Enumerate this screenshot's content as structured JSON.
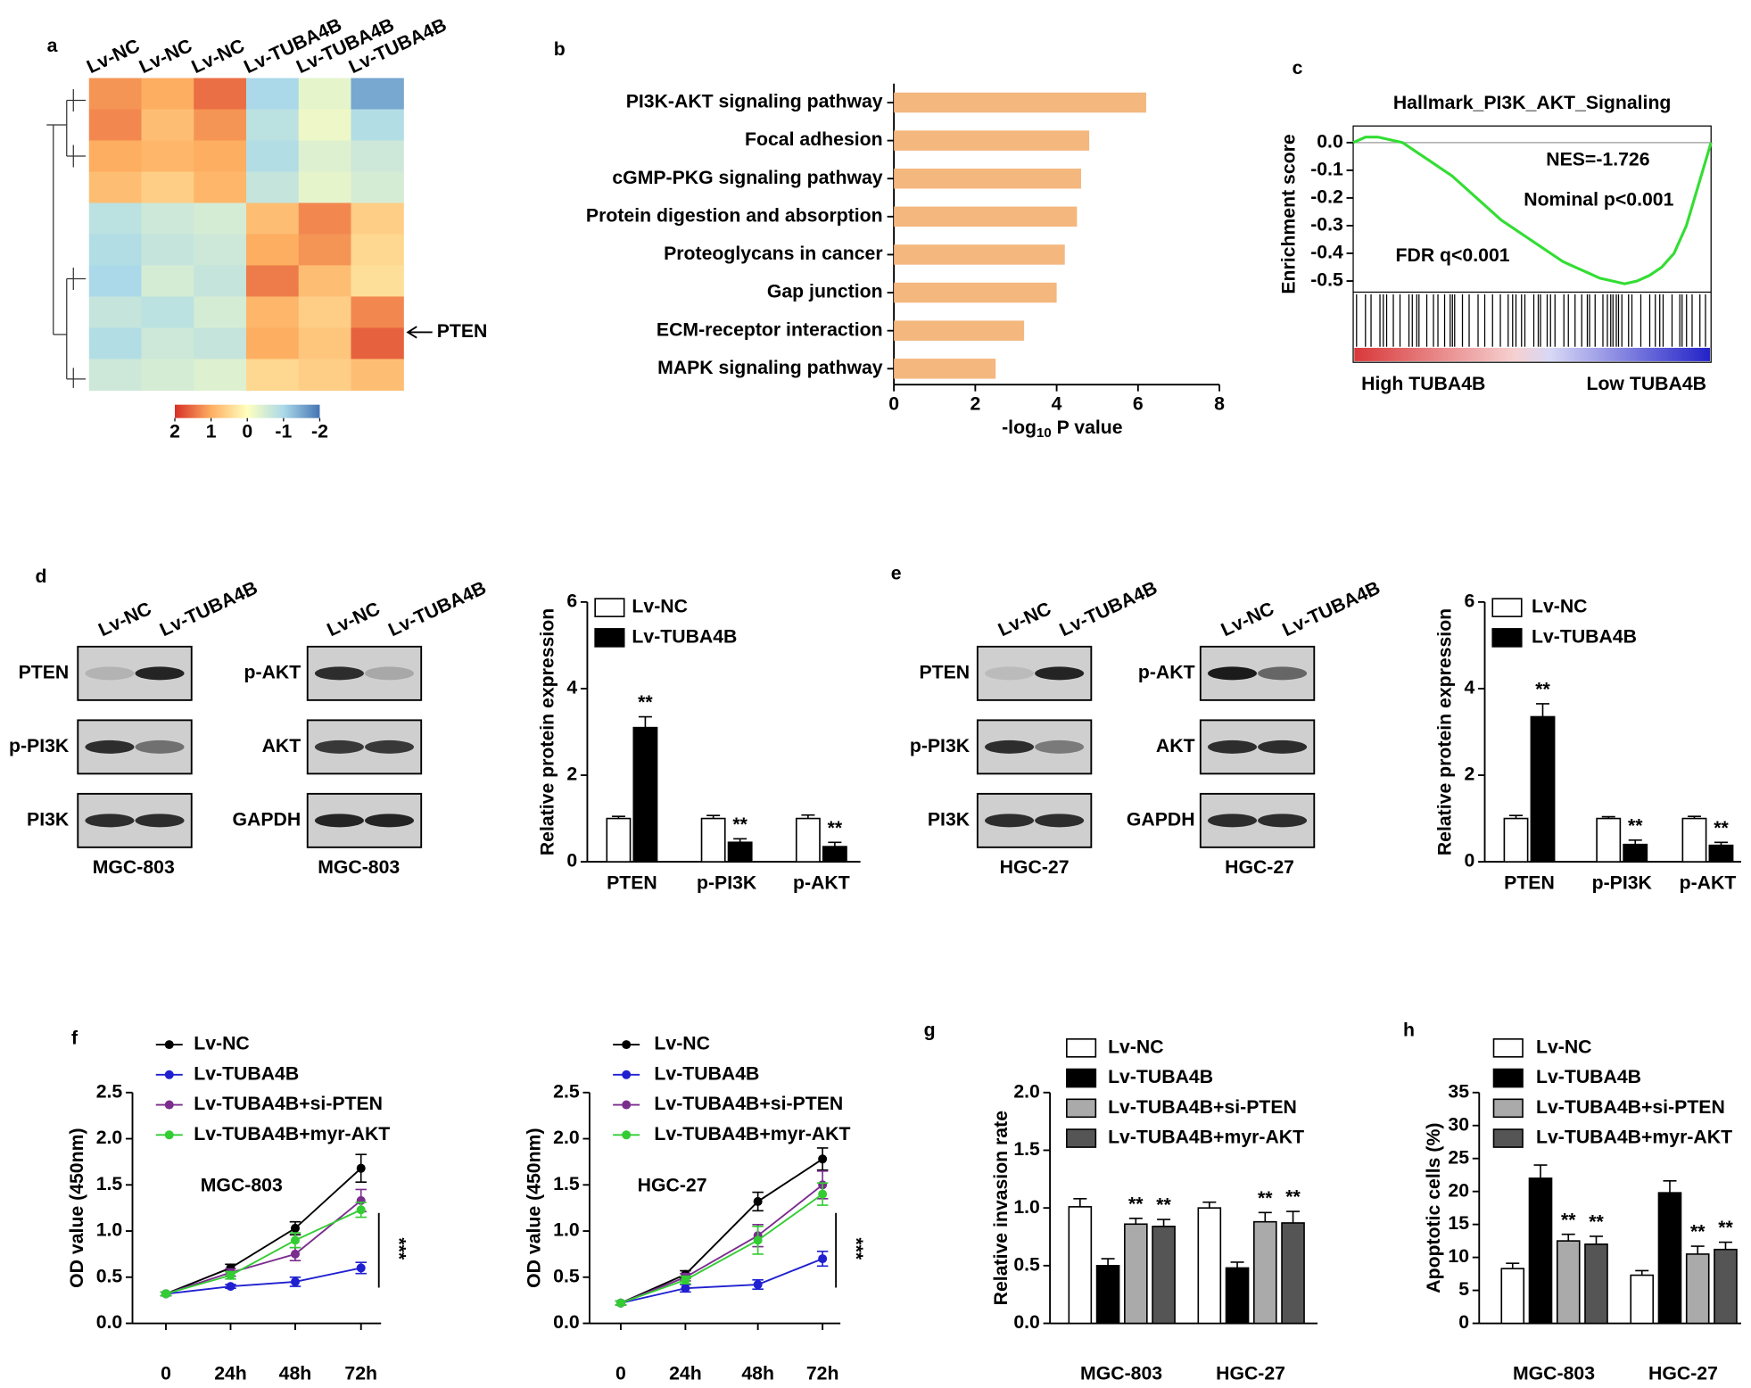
{
  "chart_data": [
    {
      "type": "heatmap",
      "panel": "a",
      "columns": [
        "Lv-NC",
        "Lv-NC",
        "Lv-NC",
        "Lv-TUBA4B",
        "Lv-TUBA4B",
        "Lv-TUBA4B"
      ],
      "values": [
        [
          1.2,
          1.0,
          1.5,
          -1.0,
          -0.3,
          -1.5
        ],
        [
          1.3,
          0.8,
          1.2,
          -0.8,
          -0.2,
          -0.9
        ],
        [
          1.0,
          0.9,
          1.0,
          -0.9,
          -0.4,
          -0.6
        ],
        [
          0.8,
          0.6,
          0.9,
          -0.7,
          -0.3,
          -0.5
        ],
        [
          -0.8,
          -0.6,
          -0.5,
          0.8,
          1.3,
          0.6
        ],
        [
          -0.9,
          -0.7,
          -0.6,
          1.0,
          1.2,
          0.5
        ],
        [
          -1.0,
          -0.5,
          -0.7,
          1.4,
          0.8,
          0.4
        ],
        [
          -0.7,
          -0.8,
          -0.5,
          0.9,
          0.6,
          1.3
        ],
        [
          -0.9,
          -0.6,
          -0.7,
          1.0,
          0.7,
          1.6
        ],
        [
          -0.6,
          -0.5,
          -0.4,
          0.5,
          0.6,
          0.8
        ]
      ],
      "colorbar_ticks": [
        2,
        1,
        0,
        -1,
        -2
      ],
      "colorscale": [
        "#d73027",
        "#fdae61",
        "#ffffbf",
        "#abd9e9",
        "#4575b4"
      ],
      "annotation": "PTEN"
    },
    {
      "type": "bar",
      "panel": "b",
      "orientation": "horizontal",
      "categories": [
        "PI3K-AKT signaling pathway",
        "Focal  adhesion",
        "cGMP-PKG signaling pathway",
        "Protein digestion and absorption",
        "Proteoglycans in cancer",
        "Gap junction",
        "ECM-receptor interaction",
        "MAPK signaling pathway"
      ],
      "values": [
        6.2,
        4.8,
        4.6,
        4.5,
        4.2,
        4.0,
        3.2,
        2.5
      ],
      "color": "#f4b77e",
      "xlim": [
        0,
        8
      ],
      "xticks": [
        0,
        2,
        4,
        6,
        8
      ],
      "xlabel": {
        "main": "-log",
        "sub": "10",
        "rest": " P value"
      }
    },
    {
      "type": "line",
      "panel": "c",
      "title": "Hallmark_PI3K_AKT_Signaling",
      "ylabel": "Enrichment score",
      "values": [
        0.0,
        0.02,
        0.02,
        0.01,
        0.0,
        -0.03,
        -0.06,
        -0.09,
        -0.12,
        -0.16,
        -0.2,
        -0.24,
        -0.28,
        -0.31,
        -0.34,
        -0.37,
        -0.4,
        -0.43,
        -0.45,
        -0.47,
        -0.49,
        -0.5,
        -0.51,
        -0.5,
        -0.48,
        -0.45,
        -0.4,
        -0.3,
        -0.15,
        0.0
      ],
      "color": "#33dd33",
      "ylim": [
        -0.54,
        0.06
      ],
      "yticks": [
        {
          "value": 0,
          "label": "0.0"
        },
        -0.1,
        -0.2,
        -0.3,
        -0.4,
        -0.5
      ],
      "annotations": [
        "NES=-1.726",
        "Nominal p<0.001",
        "FDR q<0.001"
      ],
      "x_labels": [
        "High TUBA4B",
        "Low TUBA4B"
      ]
    },
    {
      "type": "blot",
      "panel": "d",
      "groups": [
        {
          "lanes": [
            "Lv-NC",
            "Lv-TUBA4B"
          ],
          "rows": [
            "PTEN",
            "p-PI3K",
            "PI3K"
          ],
          "cell_line": "MGC-803"
        },
        {
          "lanes": [
            "Lv-NC",
            "Lv-TUBA4B"
          ],
          "rows": [
            "p-AKT",
            "AKT",
            "GAPDH"
          ],
          "cell_line": "MGC-803"
        }
      ]
    },
    {
      "type": "bar",
      "ylabel": "Relative protein expression",
      "categories": [
        "PTEN",
        "p-PI3K",
        "p-AKT"
      ],
      "series": [
        {
          "name": "Lv-NC",
          "color": "#ffffff",
          "values": [
            1,
            1,
            1
          ],
          "errors": [
            0.05,
            0.07,
            0.08
          ]
        },
        {
          "name": "Lv-TUBA4B",
          "color": "#000000",
          "values": [
            3.1,
            0.45,
            0.35
          ],
          "errors": [
            0.25,
            0.08,
            0.1
          ],
          "significance": [
            "**",
            "**",
            "**"
          ]
        }
      ],
      "ylim": [
        0,
        6
      ],
      "yticks": [
        0,
        2,
        4,
        6
      ]
    },
    {
      "type": "blot",
      "panel": "e",
      "groups": [
        {
          "lanes": [
            "Lv-NC",
            "Lv-TUBA4B"
          ],
          "rows": [
            "PTEN",
            "p-PI3K",
            "PI3K"
          ],
          "cell_line": "HGC-27"
        },
        {
          "lanes": [
            "Lv-NC",
            "Lv-TUBA4B"
          ],
          "rows": [
            "p-AKT",
            "AKT",
            "GAPDH"
          ],
          "cell_line": "HGC-27"
        }
      ]
    },
    {
      "type": "bar",
      "ylabel": "Relative protein expression",
      "categories": [
        "PTEN",
        "p-PI3K",
        "p-AKT"
      ],
      "series": [
        {
          "name": "Lv-NC",
          "color": "#ffffff",
          "values": [
            1,
            1,
            1
          ],
          "errors": [
            0.07,
            0.04,
            0.05
          ]
        },
        {
          "name": "Lv-TUBA4B",
          "color": "#000000",
          "values": [
            3.35,
            0.4,
            0.38
          ],
          "errors": [
            0.3,
            0.1,
            0.07
          ],
          "significance": [
            "**",
            "**",
            "**"
          ]
        }
      ],
      "ylim": [
        0,
        6
      ],
      "yticks": [
        0,
        2,
        4,
        6
      ]
    },
    {
      "type": "line",
      "panel": "f",
      "ylabel": "OD value (450nm)",
      "label": "MGC-803",
      "significance": "***",
      "categories": [
        "0",
        "24h",
        "48h",
        "72h"
      ],
      "series": [
        {
          "name": "Lv-NC",
          "color": "#000000",
          "values": [
            0.32,
            0.6,
            1.03,
            1.68
          ],
          "errors": [
            0.02,
            0.04,
            0.07,
            0.15
          ]
        },
        {
          "name": "Lv-TUBA4B",
          "color": "#2020d0",
          "values": [
            0.32,
            0.4,
            0.45,
            0.6
          ],
          "errors": [
            0.02,
            0.02,
            0.05,
            0.06
          ]
        },
        {
          "name": "Lv-TUBA4B+si-PTEN",
          "color": "#7b2d8e",
          "values": [
            0.32,
            0.55,
            0.75,
            1.33
          ],
          "errors": [
            0.02,
            0.04,
            0.07,
            0.12
          ]
        },
        {
          "name": "Lv-TUBA4B+myr-AKT",
          "color": "#33cc33",
          "values": [
            0.32,
            0.52,
            0.9,
            1.23
          ],
          "errors": [
            0.02,
            0.04,
            0.08,
            0.08
          ]
        }
      ],
      "ylim": [
        0,
        2.5
      ],
      "yticks": [
        {
          "value": 0,
          "label": "0.0"
        },
        0.5,
        {
          "value": 1,
          "label": "1.0"
        },
        1.5,
        {
          "value": 2,
          "label": "2.0"
        },
        2.5
      ]
    },
    {
      "type": "line",
      "ylabel": "OD value (450nm)",
      "label": "HGC-27",
      "significance": "***",
      "categories": [
        "0",
        "24h",
        "48h",
        "72h"
      ],
      "series": [
        {
          "name": "Lv-NC",
          "color": "#000000",
          "values": [
            0.22,
            0.53,
            1.32,
            1.78
          ],
          "errors": [
            0.02,
            0.04,
            0.1,
            0.12
          ]
        },
        {
          "name": "Lv-TUBA4B",
          "color": "#2020d0",
          "values": [
            0.22,
            0.38,
            0.42,
            0.7
          ],
          "errors": [
            0.02,
            0.04,
            0.05,
            0.08
          ]
        },
        {
          "name": "Lv-TUBA4B+si-PTEN",
          "color": "#7b2d8e",
          "values": [
            0.22,
            0.5,
            0.95,
            1.5
          ],
          "errors": [
            0.02,
            0.04,
            0.12,
            0.15
          ]
        },
        {
          "name": "Lv-TUBA4B+myr-AKT",
          "color": "#33cc33",
          "values": [
            0.22,
            0.47,
            0.9,
            1.4
          ],
          "errors": [
            0.02,
            0.04,
            0.15,
            0.12
          ]
        }
      ],
      "ylim": [
        0,
        2.5
      ],
      "yticks": [
        {
          "value": 0,
          "label": "0.0"
        },
        0.5,
        {
          "value": 1,
          "label": "1.0"
        },
        1.5,
        {
          "value": 2,
          "label": "2.0"
        },
        2.5
      ]
    },
    {
      "type": "bar",
      "panel": "g",
      "ylabel": "Relative invasion rate",
      "categories": [
        "MGC-803",
        "HGC-27"
      ],
      "series": [
        {
          "name": "Lv-NC",
          "color": "#ffffff",
          "values": [
            1.01,
            1.0
          ],
          "errors": [
            0.07,
            0.05
          ]
        },
        {
          "name": "Lv-TUBA4B",
          "color": "#000000",
          "values": [
            0.5,
            0.48
          ],
          "errors": [
            0.06,
            0.05
          ]
        },
        {
          "name": "Lv-TUBA4B+si-PTEN",
          "color": "#aaaaaa",
          "values": [
            0.86,
            0.88
          ],
          "errors": [
            0.05,
            0.08
          ],
          "significance": [
            "**",
            "**"
          ]
        },
        {
          "name": "Lv-TUBA4B+myr-AKT",
          "color": "#555555",
          "values": [
            0.84,
            0.87
          ],
          "errors": [
            0.06,
            0.1
          ],
          "significance": [
            "**",
            "**"
          ]
        }
      ],
      "ylim": [
        0,
        2
      ],
      "yticks": [
        {
          "value": 0,
          "label": "0.0"
        },
        0.5,
        {
          "value": 1,
          "label": "1.0"
        },
        1.5,
        {
          "value": 2,
          "label": "2.0"
        }
      ]
    },
    {
      "type": "bar",
      "panel": "h",
      "ylabel": "Apoptotic cells (%)",
      "categories": [
        "MGC-803",
        "HGC-27"
      ],
      "series": [
        {
          "name": "Lv-NC",
          "color": "#ffffff",
          "values": [
            8.3,
            7.3
          ],
          "errors": [
            0.8,
            0.7
          ]
        },
        {
          "name": "Lv-TUBA4B",
          "color": "#000000",
          "values": [
            22,
            19.8
          ],
          "errors": [
            2,
            1.8
          ]
        },
        {
          "name": "Lv-TUBA4B+si-PTEN",
          "color": "#aaaaaa",
          "values": [
            12.5,
            10.5
          ],
          "errors": [
            1,
            1.2
          ],
          "significance": [
            "**",
            "**"
          ]
        },
        {
          "name": "Lv-TUBA4B+myr-AKT",
          "color": "#555555",
          "values": [
            12,
            11.2
          ],
          "errors": [
            1.2,
            1.1
          ],
          "significance": [
            "**",
            "**"
          ]
        }
      ],
      "ylim": [
        0,
        35
      ],
      "yticks": [
        0,
        5,
        10,
        15,
        20,
        25,
        30,
        35
      ]
    }
  ]
}
